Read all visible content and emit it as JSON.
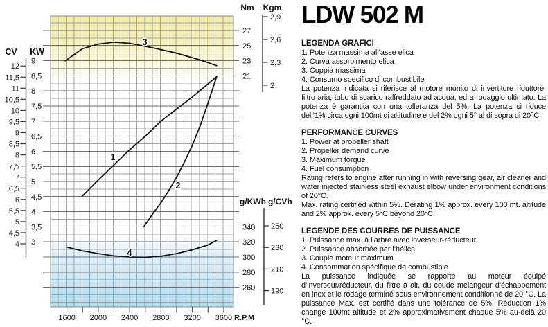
{
  "title": "LDW 502 M",
  "sections": [
    {
      "heading": "LEGENDA GRAFICI",
      "items": [
        "1. Potenza massima all’asse elica",
        "2. Curva assorbimento elica",
        "3. Coppia massima",
        "4. Consumo specifico di combustibile"
      ],
      "paragraphs": [
        "La potenza indicata si riferisce al motore munito di invertitore riduttore, filtro aria, tubo di scarico raffreddato ad acqua, ed a rodaggio ultimato.  La potenza è garantita con una tolleranza del 5%.  La potenza si riduce dell’1% circa ogni 100mt di altitudine e del 2% ogni 5° al di sopra di 20°C."
      ]
    },
    {
      "heading": "PERFORMANCE CURVES",
      "items": [
        "1. Power at propeller shaft",
        "2. Propeller demand curve",
        "3. Maximum torque",
        "4. Fuel consumption"
      ],
      "paragraphs": [
        "Rating refers to engine after running in with reversing gear, air cleaner and water injected stainless steel exhaust elbow under environment conditions of 20°C.",
        "Max. rating certified within 5%. Derating 1% approx. every 100 mt. altitude and 2% approx. every 5°C  beyond 20°C."
      ]
    },
    {
      "heading": "LEGENDE DES COURBES DE PUISSANCE",
      "items": [
        "1. Puissance max. à l’arbre avec inverseur-réducteur",
        "2. Puissance absorbée par l’hélice",
        "3. Couple moteur maximum",
        "4. Consommation spécifique de combustible"
      ],
      "paragraphs": [
        "La puissance indiquée se rapporte au moteur équipé d’inverseur/réducteur, du filtre à air, du coude mélangeur d’échappement en inox et le rodage terminé sous environnement conditionné de 20 °C. La puissance Max. est certifié dans une tolérance de 5%. Réduction 1% change 100mt altitude et 2% approximativement chaque 5% au-delà 20 °C."
      ]
    }
  ],
  "chart_data": {
    "type": "line",
    "title": "",
    "x_axis": {
      "label": "R.P.M",
      "tick_labels": [
        "1600",
        "2000",
        "2400",
        "2800",
        "3200",
        "3600"
      ],
      "minor_tick_step_rpm": 200,
      "grid_step_rpm": 100,
      "range": [
        1390,
        3710
      ]
    },
    "axes": {
      "cv": {
        "label": "CV",
        "ticks": [
          "12",
          "11,5",
          "11",
          "10,5",
          "10",
          "9,5",
          "9",
          "8,5",
          "8",
          "7,5",
          "7",
          "6,5",
          "6",
          "5,5",
          "5",
          "4,5",
          "4"
        ]
      },
      "kw": {
        "label": "KW",
        "ticks": [
          "9",
          "8,5",
          "8",
          "7,5",
          "7",
          "6,5",
          "6",
          "5,5",
          "5",
          "4,5",
          "4",
          "3,5",
          "3"
        ]
      },
      "nm": {
        "label": "Nm",
        "ticks": [
          "27",
          "25",
          "23",
          "21"
        ]
      },
      "kgm": {
        "label": "Kgm",
        "ticks": [
          "2,9",
          "2,6",
          "2,3",
          "2"
        ]
      },
      "gkwh": {
        "label": "g/KWh",
        "ticks": [
          "340",
          "320",
          "300",
          "280",
          "260"
        ]
      },
      "gcvh": {
        "label": "g/CVh",
        "ticks": [
          "250",
          "230",
          "210",
          "190"
        ]
      }
    },
    "series": [
      {
        "num": "1",
        "name": "Power at propeller shaft",
        "unit": "KW",
        "points": [
          [
            1790,
            4.5
          ],
          [
            2000,
            5.05
          ],
          [
            2200,
            5.55
          ],
          [
            2400,
            6.05
          ],
          [
            2600,
            6.5
          ],
          [
            2800,
            7.0
          ],
          [
            3000,
            7.4
          ],
          [
            3200,
            7.8
          ],
          [
            3510,
            8.47
          ]
        ]
      },
      {
        "num": "2",
        "name": "Propeller demand curve",
        "unit": "KW",
        "points": [
          [
            2580,
            3.5
          ],
          [
            2700,
            3.95
          ],
          [
            2800,
            4.3
          ],
          [
            2900,
            4.7
          ],
          [
            3000,
            5.15
          ],
          [
            3100,
            5.65
          ],
          [
            3200,
            6.2
          ],
          [
            3300,
            6.85
          ],
          [
            3400,
            7.6
          ],
          [
            3510,
            8.47
          ]
        ]
      },
      {
        "num": "3",
        "name": "Maximum torque",
        "unit": "Nm",
        "points": [
          [
            1580,
            23.0
          ],
          [
            1800,
            24.6
          ],
          [
            2000,
            25.2
          ],
          [
            2200,
            25.45
          ],
          [
            2400,
            25.3
          ],
          [
            2700,
            24.7
          ],
          [
            3000,
            24.0
          ],
          [
            3300,
            23.1
          ],
          [
            3510,
            22.35
          ]
        ]
      },
      {
        "num": "4",
        "name": "Fuel consumption",
        "unit": "g/KWh",
        "points": [
          [
            1600,
            313
          ],
          [
            1800,
            308
          ],
          [
            2000,
            304.5
          ],
          [
            2200,
            301.5
          ],
          [
            2400,
            300
          ],
          [
            2600,
            299.5
          ],
          [
            2800,
            301
          ],
          [
            3000,
            304.5
          ],
          [
            3200,
            309.5
          ],
          [
            3400,
            316
          ],
          [
            3510,
            322
          ]
        ]
      }
    ],
    "colors": {
      "torque_band_yellow": "#f1eba5",
      "consumption_band_blue": "#b0dcf1",
      "grid_minor": "#a2a2a2",
      "grid_major": "#6e6e6e",
      "curve": "#141414",
      "text": "#1a1a1a"
    }
  }
}
